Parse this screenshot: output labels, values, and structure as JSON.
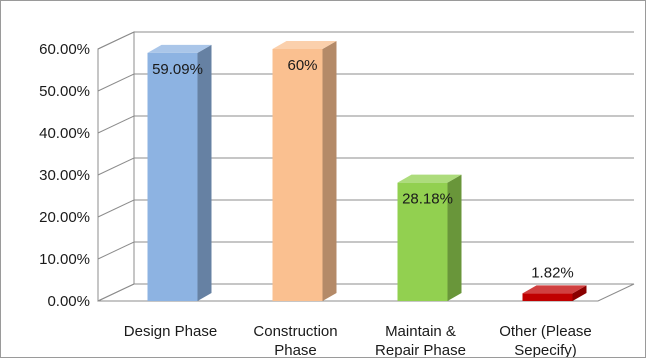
{
  "chart_data": {
    "type": "bar",
    "style": "3d-column",
    "categories": [
      "Design Phase",
      "Construction Phase",
      "Maintain & Repair Phase",
      "Other (Please Sepecify)"
    ],
    "category_lines": [
      [
        "Design Phase"
      ],
      [
        "Construction",
        "Phase"
      ],
      [
        "Maintain &",
        "Repair Phase"
      ],
      [
        "Other (Please",
        "Sepecify)"
      ]
    ],
    "values": [
      59.09,
      60,
      28.18,
      1.82
    ],
    "data_labels": [
      "59.09%",
      "60%",
      "28.18%",
      "1.82%"
    ],
    "colors": [
      "#8DB3E2",
      "#FAC090",
      "#92D050",
      "#C00000"
    ],
    "ylim": [
      0,
      60
    ],
    "ytick_values": [
      0,
      10,
      20,
      30,
      40,
      50,
      60
    ],
    "ytick_labels": [
      "0.00%",
      "10.00%",
      "20.00%",
      "30.00%",
      "40.00%",
      "50.00%",
      "60.00%"
    ],
    "grid": true,
    "legend": "none",
    "title": "",
    "xlabel": "",
    "ylabel": ""
  }
}
